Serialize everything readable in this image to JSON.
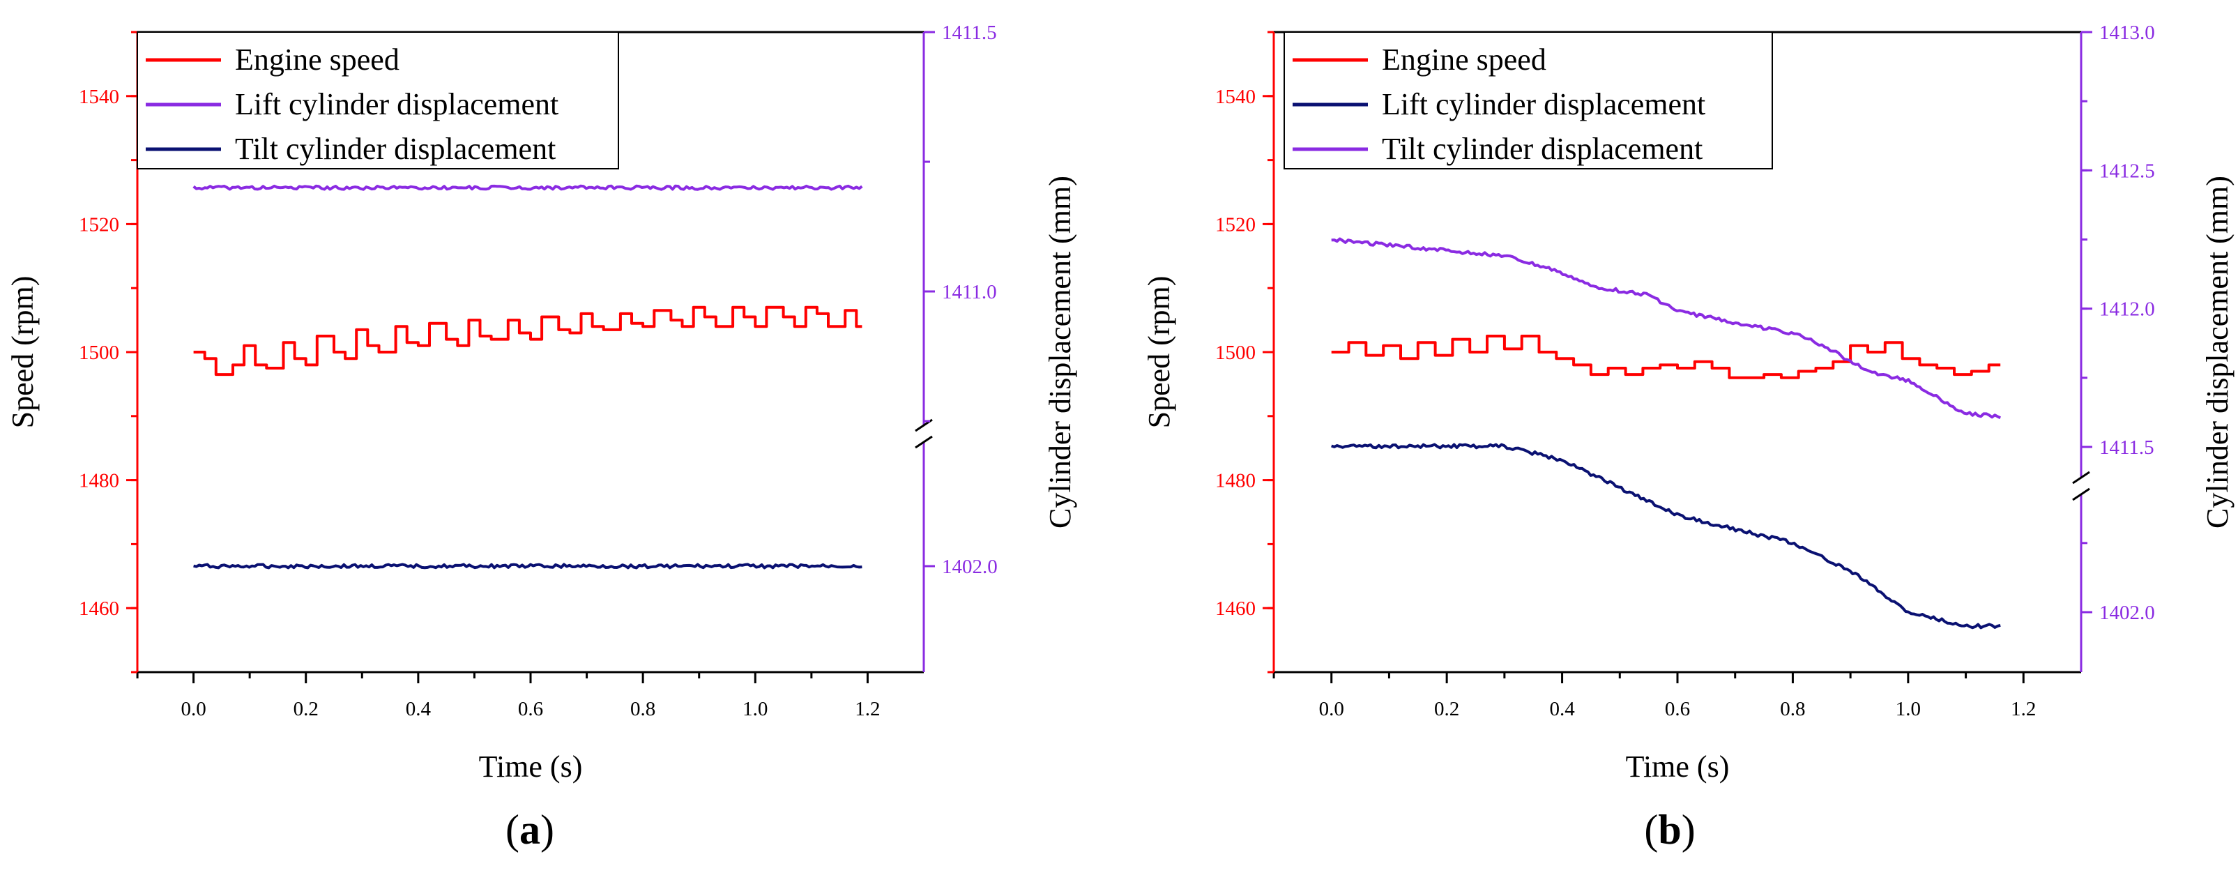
{
  "colors": {
    "engine": "#ff0000",
    "lift_a": "#8a2be2",
    "tilt_a": "#0a1172",
    "lift_b": "#0a1172",
    "tilt_b": "#8a2be2",
    "right_axis": "#8a2be2",
    "left_axis": "#ff0000"
  },
  "chart_data": [
    {
      "type": "line",
      "panel": "(a)",
      "panel_letter": "a",
      "xlabel": "Time (s)",
      "ylabel": "Speed (rpm)",
      "y2label": "Cylinder displacement (mm)",
      "xlim": [
        -0.1,
        1.3
      ],
      "x_ticks": [
        "0.0",
        "0.2",
        "0.4",
        "0.6",
        "0.8",
        "1.0",
        "1.2"
      ],
      "ylim": [
        1450,
        1550
      ],
      "y_ticks": [
        "1460",
        "1480",
        "1500",
        "1520",
        "1540"
      ],
      "y2_ticks_upper": [
        "1411.0",
        "1411.5"
      ],
      "y2_ticks_lower": [
        "1402.0"
      ],
      "y2_axis_break": true,
      "legend": [
        "Engine speed",
        "Lift cylinder displacement",
        "Tilt cylinder displacement"
      ],
      "legend_position": "top-left",
      "series": [
        {
          "name": "Engine speed",
          "axis": "left",
          "style": "step",
          "x": [
            0.0,
            0.02,
            0.04,
            0.07,
            0.09,
            0.11,
            0.13,
            0.16,
            0.18,
            0.2,
            0.22,
            0.25,
            0.27,
            0.29,
            0.31,
            0.33,
            0.36,
            0.38,
            0.4,
            0.42,
            0.45,
            0.47,
            0.49,
            0.51,
            0.53,
            0.56,
            0.58,
            0.6,
            0.62,
            0.65,
            0.67,
            0.69,
            0.71,
            0.73,
            0.76,
            0.78,
            0.8,
            0.82,
            0.85,
            0.87,
            0.89,
            0.91,
            0.93,
            0.96,
            0.98,
            1.0,
            1.02,
            1.05,
            1.07,
            1.09,
            1.11,
            1.13,
            1.16,
            1.18,
            1.19
          ],
          "values": [
            1500,
            1499,
            1496.5,
            1498,
            1501,
            1498,
            1497.5,
            1501.5,
            1499,
            1498,
            1502.5,
            1500,
            1499,
            1503.5,
            1501,
            1500,
            1504,
            1501.5,
            1501,
            1504.5,
            1502,
            1501,
            1505,
            1502.5,
            1502,
            1505,
            1503,
            1502,
            1505.5,
            1503.5,
            1503,
            1506,
            1504,
            1503.5,
            1506,
            1504.5,
            1504,
            1506.5,
            1505,
            1504,
            1507,
            1505.5,
            1504,
            1507,
            1505.5,
            1504,
            1507,
            1505.5,
            1504,
            1507,
            1506,
            1504,
            1506.5,
            1504,
            1504
          ]
        },
        {
          "name": "Lift cylinder displacement",
          "axis": "right",
          "style": "noisy",
          "x": [
            0.0,
            0.2,
            0.4,
            0.6,
            0.8,
            1.0,
            1.19
          ],
          "values": [
            1411.2,
            1411.2,
            1411.2,
            1411.2,
            1411.2,
            1411.2,
            1411.2
          ]
        },
        {
          "name": "Tilt cylinder displacement",
          "axis": "right",
          "style": "noisy",
          "x": [
            0.0,
            0.2,
            0.4,
            0.6,
            0.8,
            1.0,
            1.19
          ],
          "values": [
            1402.0,
            1402.0,
            1402.0,
            1402.0,
            1402.0,
            1402.0,
            1402.0
          ]
        }
      ]
    },
    {
      "type": "line",
      "panel": "(b)",
      "panel_letter": "b",
      "xlabel": "Time (s)",
      "ylabel": "Speed (rpm)",
      "y2label": "Cylinder displacement (mm)",
      "xlim": [
        -0.1,
        1.3
      ],
      "x_ticks": [
        "0.0",
        "0.2",
        "0.4",
        "0.6",
        "0.8",
        "1.0",
        "1.2"
      ],
      "ylim": [
        1450,
        1550
      ],
      "y_ticks": [
        "1460",
        "1480",
        "1500",
        "1520",
        "1540"
      ],
      "y2_ticks_upper": [
        "1411.5",
        "1412.0",
        "1412.5",
        "1413.0"
      ],
      "y2_ticks_lower": [
        "1402.0"
      ],
      "y2_axis_break": true,
      "legend": [
        "Engine speed",
        "Lift cylinder displacement",
        "Tilt cylinder displacement"
      ],
      "legend_position": "top-left",
      "series": [
        {
          "name": "Engine speed",
          "axis": "left",
          "style": "step",
          "x": [
            0.0,
            0.03,
            0.06,
            0.09,
            0.12,
            0.15,
            0.18,
            0.21,
            0.24,
            0.27,
            0.3,
            0.33,
            0.36,
            0.39,
            0.42,
            0.45,
            0.48,
            0.51,
            0.54,
            0.57,
            0.6,
            0.63,
            0.66,
            0.69,
            0.72,
            0.75,
            0.78,
            0.81,
            0.84,
            0.87,
            0.9,
            0.93,
            0.96,
            0.99,
            1.02,
            1.05,
            1.08,
            1.11,
            1.14,
            1.16
          ],
          "values": [
            1500,
            1501.5,
            1499.5,
            1501,
            1499,
            1501.5,
            1499.5,
            1502,
            1500,
            1502.5,
            1500.5,
            1502.5,
            1500,
            1499,
            1498,
            1496.5,
            1497.5,
            1496.5,
            1497.5,
            1498,
            1497.5,
            1498.5,
            1497.5,
            1496,
            1496,
            1496.5,
            1496,
            1497,
            1497.5,
            1498.5,
            1501,
            1500,
            1501.5,
            1499,
            1498,
            1497.5,
            1496.5,
            1497,
            1498,
            1498
          ]
        },
        {
          "name": "Lift cylinder displacement",
          "axis": "right",
          "style": "noisy",
          "x": [
            0.0,
            0.1,
            0.2,
            0.3,
            0.4,
            0.5,
            0.6,
            0.7,
            0.8,
            0.9,
            1.0,
            1.1,
            1.16
          ],
          "values": [
            1402.6,
            1402.6,
            1402.6,
            1402.6,
            1402.55,
            1402.45,
            1402.35,
            1402.3,
            1402.25,
            1402.15,
            1402.0,
            1401.95,
            1401.95
          ]
        },
        {
          "name": "Tilt cylinder displacement",
          "axis": "right",
          "style": "noisy",
          "x": [
            0.0,
            0.1,
            0.2,
            0.3,
            0.4,
            0.45,
            0.55,
            0.6,
            0.7,
            0.8,
            0.85,
            0.9,
            0.95,
            1.0,
            1.05,
            1.1,
            1.16
          ],
          "values": [
            1412.25,
            1412.23,
            1412.21,
            1412.19,
            1412.13,
            1412.08,
            1412.05,
            1411.99,
            1411.95,
            1411.91,
            1411.87,
            1411.81,
            1411.76,
            1411.74,
            1411.68,
            1411.62,
            1411.61
          ]
        }
      ]
    }
  ]
}
